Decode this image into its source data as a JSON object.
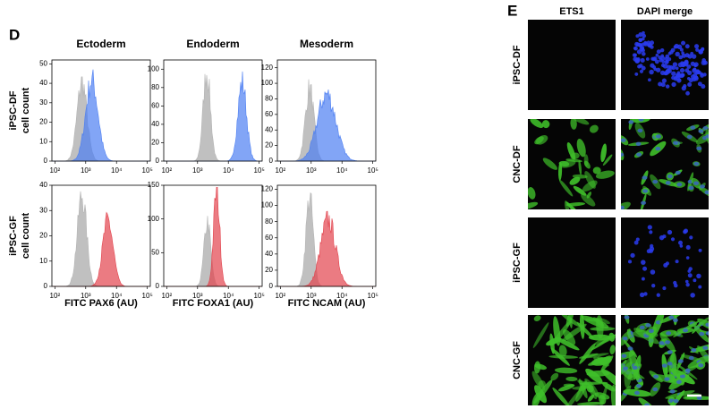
{
  "panel_d": {
    "label": "D",
    "columns": [
      "Ectoderm",
      "Endoderm",
      "Mesoderm"
    ],
    "rows": [
      {
        "line1": "iPSC-DF",
        "line2": "cell count"
      },
      {
        "line1": "iPSC-GF",
        "line2": "cell count"
      }
    ],
    "x_labels": [
      "FITC PAX6 (AU)",
      "FITC FOXA1 (AU)",
      "FITC NCAM (AU)"
    ],
    "xscale": "log",
    "xlim": [
      80,
      125000
    ],
    "xticks": [
      {
        "value": 100,
        "label": "10²"
      },
      {
        "value": 1000,
        "label": "10³"
      },
      {
        "value": 10000,
        "label": "10⁴"
      },
      {
        "value": 100000,
        "label": "10⁵"
      }
    ],
    "plots": [
      {
        "ylim": [
          0,
          52
        ],
        "yticks": [
          0,
          10,
          20,
          30,
          40,
          50
        ]
      },
      {
        "ylim": [
          0,
          110
        ],
        "yticks": [
          0,
          20,
          40,
          60,
          80,
          100
        ]
      },
      {
        "ylim": [
          0,
          130
        ],
        "yticks": [
          0,
          20,
          40,
          60,
          80,
          100,
          120
        ]
      },
      {
        "ylim": [
          0,
          40
        ],
        "yticks": [
          0,
          10,
          20,
          30,
          40
        ]
      },
      {
        "ylim": [
          0,
          150
        ],
        "yticks": [
          0,
          50,
          100,
          150
        ]
      },
      {
        "ylim": [
          0,
          125
        ],
        "yticks": [
          0,
          20,
          40,
          60,
          80,
          100,
          120
        ]
      }
    ]
  },
  "panel_e": {
    "label": "E",
    "columns": [
      "ETS1",
      "DAPI merge"
    ],
    "rows": [
      "iPSC-DF",
      "CNC-DF",
      "iPSC-GF",
      "CNC-GF"
    ]
  }
}
